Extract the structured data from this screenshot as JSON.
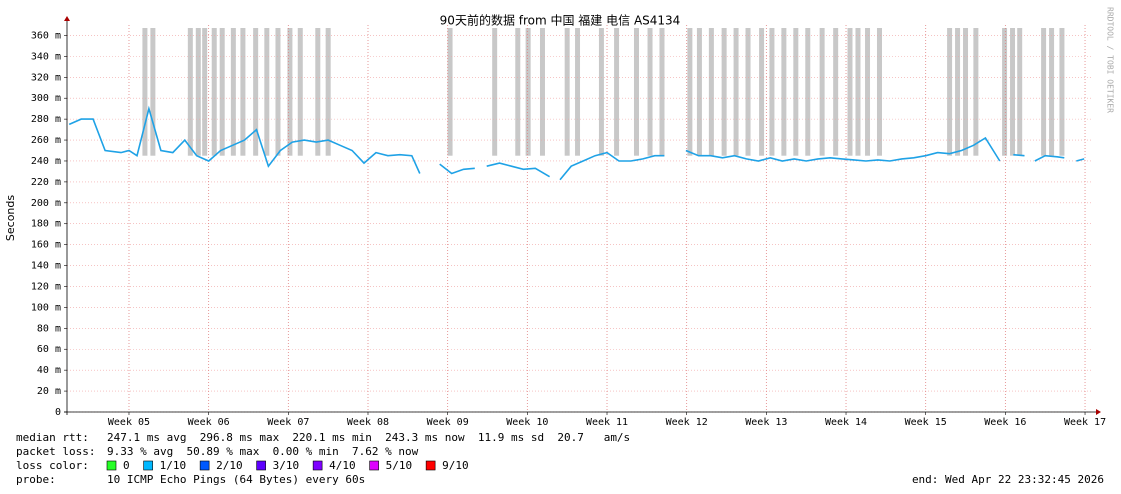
{
  "chart_data": {
    "type": "line",
    "title": "90天前的数据 from  中国 福建 电信 AS4134",
    "y_label": "Seconds",
    "watermark": "RRDTOOL / TOBI OETIKER",
    "color": "#1fa2e6",
    "loss_color": "#c8c8c8",
    "grid": true,
    "xlim": [
      4.222,
      17.1
    ],
    "xticks": [
      {
        "value": 5,
        "label": "Week 05"
      },
      {
        "value": 6,
        "label": "Week 06"
      },
      {
        "value": 7,
        "label": "Week 07"
      },
      {
        "value": 8,
        "label": "Week 08"
      },
      {
        "value": 9,
        "label": "Week 09"
      },
      {
        "value": 10,
        "label": "Week 10"
      },
      {
        "value": 11,
        "label": "Week 11"
      },
      {
        "value": 12,
        "label": "Week 12"
      },
      {
        "value": 13,
        "label": "Week 13"
      },
      {
        "value": 14,
        "label": "Week 14"
      },
      {
        "value": 15,
        "label": "Week 15"
      },
      {
        "value": 16,
        "label": "Week 16"
      },
      {
        "value": 17,
        "label": "Week 17"
      }
    ],
    "ylim": [
      0,
      0.37
    ],
    "yticks": [
      0,
      {
        "value": 0.02,
        "label": "20 m"
      },
      {
        "value": 0.04,
        "label": "40 m"
      },
      {
        "value": 0.06,
        "label": "60 m"
      },
      {
        "value": 0.08,
        "label": "80 m"
      },
      {
        "value": 0.1,
        "label": "100 m"
      },
      {
        "value": 0.12,
        "label": "120 m"
      },
      {
        "value": 0.14,
        "label": "140 m"
      },
      {
        "value": 0.16,
        "label": "160 m"
      },
      {
        "value": 0.18,
        "label": "180 m"
      },
      {
        "value": 0.2,
        "label": "200 m"
      },
      {
        "value": 0.22,
        "label": "220 m"
      },
      {
        "value": 0.24,
        "label": "240 m"
      },
      {
        "value": 0.26,
        "label": "260 m"
      },
      {
        "value": 0.28,
        "label": "280 m"
      },
      {
        "value": 0.3,
        "label": "300 m"
      },
      {
        "value": 0.32,
        "label": "320 m"
      },
      {
        "value": 0.34,
        "label": "340 m"
      },
      {
        "value": 0.36,
        "label": "360 m"
      }
    ],
    "x": [
      4.25,
      4.4,
      4.55,
      4.7,
      4.9,
      5.0,
      5.1,
      5.25,
      5.4,
      5.55,
      5.7,
      5.85,
      6.0,
      6.15,
      6.3,
      6.45,
      6.6,
      6.75,
      6.9,
      7.05,
      7.2,
      7.35,
      7.5,
      7.65,
      7.8,
      7.95,
      8.1,
      8.25,
      8.4,
      8.55,
      8.65,
      8.78,
      8.9,
      9.05,
      9.2,
      9.34,
      9.42,
      9.49,
      9.65,
      9.8,
      9.95,
      10.1,
      10.28,
      10.35,
      10.41,
      10.55,
      10.7,
      10.85,
      11.0,
      11.15,
      11.3,
      11.45,
      11.6,
      11.72,
      11.85,
      11.99,
      12.15,
      12.3,
      12.45,
      12.6,
      12.75,
      12.9,
      13.05,
      13.2,
      13.35,
      13.5,
      13.65,
      13.8,
      13.95,
      14.1,
      14.25,
      14.4,
      14.55,
      14.7,
      14.85,
      15.0,
      15.15,
      15.3,
      15.45,
      15.6,
      15.75,
      15.93,
      16.05,
      16.1,
      16.24,
      16.3,
      16.37,
      16.5,
      16.65,
      16.74,
      16.8,
      16.89,
      16.99
    ],
    "values": [
      0.275,
      0.28,
      0.28,
      0.25,
      0.248,
      0.25,
      0.245,
      0.29,
      0.25,
      0.248,
      0.26,
      0.245,
      0.24,
      0.25,
      0.255,
      0.26,
      0.27,
      0.235,
      0.25,
      0.258,
      0.26,
      0.258,
      0.26,
      0.255,
      0.25,
      0.238,
      0.248,
      0.245,
      0.246,
      0.245,
      0.228,
      null,
      0.237,
      0.228,
      0.232,
      0.233,
      null,
      0.235,
      0.238,
      0.235,
      0.232,
      0.233,
      0.225,
      null,
      0.222,
      0.235,
      0.24,
      0.245,
      0.248,
      0.24,
      0.24,
      0.242,
      0.245,
      0.245,
      null,
      0.25,
      0.245,
      0.245,
      0.243,
      0.245,
      0.242,
      0.24,
      0.243,
      0.24,
      0.242,
      0.24,
      0.242,
      0.243,
      0.242,
      0.241,
      0.24,
      0.241,
      0.24,
      0.242,
      0.243,
      0.245,
      0.248,
      0.247,
      0.25,
      0.255,
      0.262,
      0.24,
      null,
      0.246,
      0.245,
      null,
      0.24,
      0.245,
      0.244,
      0.243,
      null,
      0.24,
      0.242
    ],
    "loss_x": [
      5.2,
      5.3,
      5.77,
      5.87,
      5.95,
      6.07,
      6.17,
      6.31,
      6.43,
      6.59,
      6.73,
      6.87,
      7.02,
      7.15,
      7.37,
      7.5,
      9.03,
      9.59,
      9.88,
      10.01,
      10.19,
      10.5,
      10.63,
      10.93,
      11.12,
      11.37,
      11.54,
      11.69,
      12.04,
      12.16,
      12.31,
      12.47,
      12.62,
      12.77,
      12.94,
      13.07,
      13.22,
      13.37,
      13.52,
      13.7,
      13.87,
      14.05,
      14.15,
      14.27,
      14.42,
      15.3,
      15.4,
      15.5,
      15.63,
      15.99,
      16.09,
      16.18,
      16.48,
      16.58,
      16.71
    ],
    "stats_label": "median rtt:",
    "stats": "247.1 ms avg  296.8 ms max  220.1 ms min  243.3 ms now  11.9 ms sd  20.7   am/s",
    "loss_label": "packet loss:",
    "loss": "9.33 % avg  50.89 % max  0.00 % min  7.62 % now",
    "legend_label": "loss color:",
    "legend": [
      {
        "label": "0",
        "color": "#26ff26"
      },
      {
        "label": "1/10",
        "color": "#00b8ff"
      },
      {
        "label": "2/10",
        "color": "#0059ff"
      },
      {
        "label": "3/10",
        "color": "#5e00ff"
      },
      {
        "label": "4/10",
        "color": "#7e00ff"
      },
      {
        "label": "5/10",
        "color": "#dd00ff"
      },
      {
        "label": "9/10",
        "color": "#ff0000"
      }
    ],
    "probe_label": "probe:",
    "probe": "10 ICMP Echo Pings (64 Bytes) every 60s",
    "end": "end: Wed Apr 22 23:32:45 2026"
  }
}
